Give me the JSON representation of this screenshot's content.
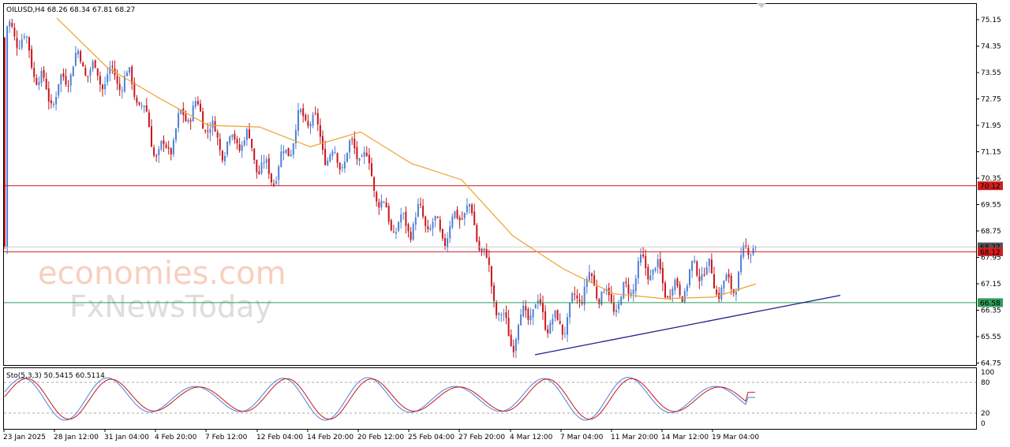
{
  "header": {
    "symbol_info": "OILUSD,H4  68.26 68.34 67.81 68.27",
    "stoch_info": "Sto(5,3,3) 50.5415 60.5114"
  },
  "watermark": {
    "line1": "economies.com",
    "line2": "FxNewsToday"
  },
  "price_axis": {
    "ticks": [
      "75.15",
      "74.35",
      "73.55",
      "72.75",
      "71.95",
      "71.15",
      "70.35",
      "69.55",
      "68.75",
      "67.95",
      "67.15",
      "66.35",
      "65.55",
      "64.75"
    ]
  },
  "price_tags": [
    {
      "value": "70.12",
      "color": "#d11e1e"
    },
    {
      "value": "68.27",
      "color": "#555555"
    },
    {
      "value": "68.12",
      "color": "#d11e1e"
    },
    {
      "value": "66.58",
      "color": "#2e9c5a"
    }
  ],
  "stoch_axis": {
    "ticks": [
      "100",
      "80",
      "20",
      "0"
    ]
  },
  "time_axis": {
    "labels": [
      "23 Jan 2025",
      "28 Jan 12:00",
      "31 Jan 04:00",
      "4 Feb 20:00",
      "7 Feb 12:00",
      "12 Feb 04:00",
      "14 Feb 20:00",
      "20 Feb 12:00",
      "25 Feb 04:00",
      "27 Feb 20:00",
      "4 Mar 12:00",
      "7 Mar 04:00",
      "11 Mar 20:00",
      "14 Mar 12:00",
      "19 Mar 04:00"
    ]
  },
  "colors": {
    "bull": "#4f7fd6",
    "bear": "#c8161c",
    "ma": "#f0a030",
    "resistance": "#d11e1e",
    "support": "#2e9c5a",
    "trendline": "#1c1f8c",
    "stoch_main": "#4f7fd6",
    "stoch_signal": "#c8161c"
  },
  "chart_data": {
    "type": "candlestick",
    "symbol": "OILUSD",
    "timeframe": "H4",
    "ylim": [
      64.75,
      75.55
    ],
    "last_bar": {
      "open": 68.26,
      "high": 68.34,
      "low": 67.81,
      "close": 68.27
    },
    "moving_average_points": [
      {
        "t": "28 Jan 12:00",
        "v": 75.2
      },
      {
        "t": "31 Jan 04:00",
        "v": 73.7
      },
      {
        "t": "4 Feb 20:00",
        "v": 72.8
      },
      {
        "t": "7 Feb 12:00",
        "v": 71.95
      },
      {
        "t": "12 Feb 04:00",
        "v": 71.9
      },
      {
        "t": "14 Feb 20:00",
        "v": 71.3
      },
      {
        "t": "20 Feb 12:00",
        "v": 71.75
      },
      {
        "t": "25 Feb 04:00",
        "v": 70.8
      },
      {
        "t": "27 Feb 20:00",
        "v": 70.3
      },
      {
        "t": "4 Mar 12:00",
        "v": 68.6
      },
      {
        "t": "7 Mar 04:00",
        "v": 67.6
      },
      {
        "t": "11 Mar 20:00",
        "v": 66.85
      },
      {
        "t": "14 Mar 12:00",
        "v": 66.7
      },
      {
        "t": "19 Mar 04:00",
        "v": 66.75
      },
      {
        "t": "last",
        "v": 67.15
      }
    ],
    "horizontal_levels": [
      70.12,
      68.12,
      66.58
    ],
    "trendline": {
      "from": {
        "t": "4 Mar 12:00",
        "v": 65.0
      },
      "to": {
        "t": "projection",
        "v": 66.8
      }
    },
    "candles_close_path": [
      {
        "t": "23 Jan 2025",
        "v": 74.6
      },
      {
        "t": "28 Jan 12:00",
        "v": 73.1
      },
      {
        "t": "31 Jan 04:00",
        "v": 73.9
      },
      {
        "t": "4 Feb 20:00",
        "v": 71.5
      },
      {
        "t": "7 Feb 12:00",
        "v": 72.2
      },
      {
        "t": "12 Feb 04:00",
        "v": 70.6
      },
      {
        "t": "14 Feb 20:00",
        "v": 71.9
      },
      {
        "t": "20 Feb 12:00",
        "v": 70.7
      },
      {
        "t": "25 Feb 04:00",
        "v": 68.6
      },
      {
        "t": "27 Feb 20:00",
        "v": 69.4
      },
      {
        "t": "4 Mar 12:00",
        "v": 65.7
      },
      {
        "t": "7 Mar 04:00",
        "v": 66.4
      },
      {
        "t": "11 Mar 20:00",
        "v": 67.0
      },
      {
        "t": "14 Mar 12:00",
        "v": 67.4
      },
      {
        "t": "19 Mar 04:00",
        "v": 67.1
      },
      {
        "t": "last",
        "v": 68.27
      }
    ],
    "stochastic": {
      "params": "5,3,3",
      "main": 50.5415,
      "signal": 60.5114,
      "levels": [
        80,
        20
      ],
      "ylim": [
        0,
        100
      ]
    }
  }
}
